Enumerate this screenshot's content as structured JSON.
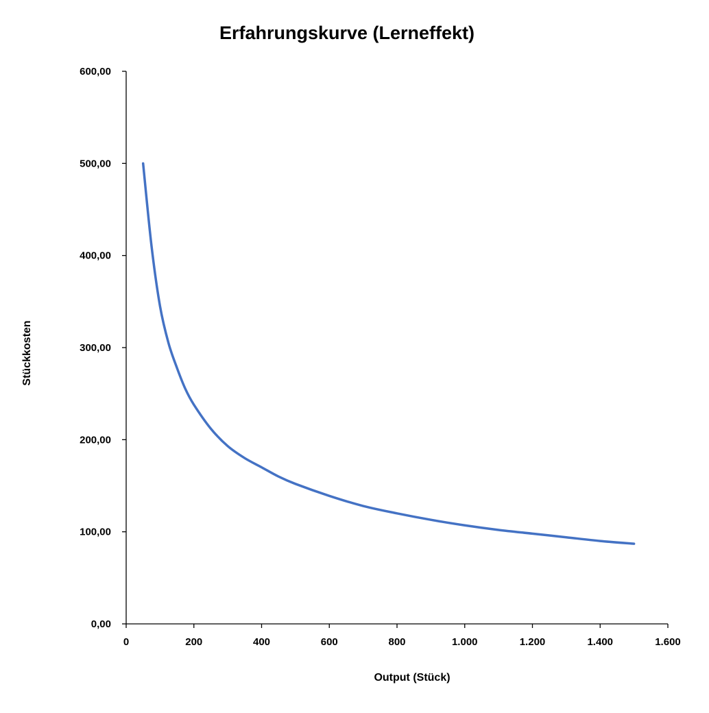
{
  "chart_data": {
    "type": "line",
    "title": "Erfahrungskurve (Lerneffekt)",
    "xlabel": "Output  (Stück)",
    "ylabel": "Stückkosten",
    "xlim": [
      0,
      1600
    ],
    "ylim": [
      0,
      600
    ],
    "x_ticks": [
      0,
      200,
      400,
      600,
      800,
      1000,
      1200,
      1400,
      1600
    ],
    "x_tick_labels": [
      "0",
      "200",
      "400",
      "600",
      "800",
      "1.000",
      "1.200",
      "1.400",
      "1.600"
    ],
    "y_ticks": [
      0,
      100,
      200,
      300,
      400,
      500,
      600
    ],
    "y_tick_labels": [
      "0,00",
      "100,00",
      "200,00",
      "300,00",
      "400,00",
      "500,00",
      "600,00"
    ],
    "grid": false,
    "legend": "none",
    "series": [
      {
        "color": "#4472C4",
        "x": [
          50,
          75,
          100,
          125,
          150,
          175,
          200,
          250,
          300,
          350,
          400,
          450,
          500,
          600,
          700,
          800,
          900,
          1000,
          1100,
          1200,
          1300,
          1400,
          1500
        ],
        "y": [
          500,
          410,
          345,
          305,
          278,
          255,
          238,
          212,
          193,
          180,
          170,
          160,
          152,
          139,
          128,
          120,
          113,
          107,
          102,
          98,
          94,
          90,
          87
        ]
      }
    ]
  }
}
